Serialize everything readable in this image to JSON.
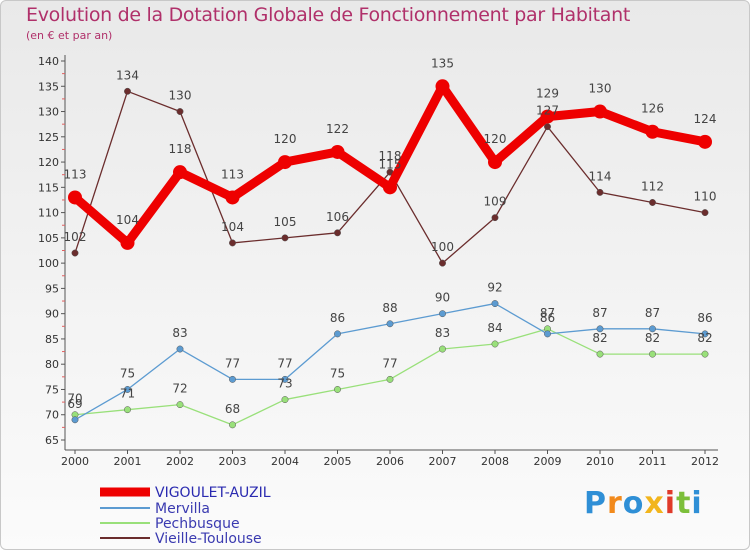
{
  "chart_data": {
    "type": "line",
    "title": "Evolution de la Dotation Globale de Fonctionnement par Habitant",
    "subtitle": "(en € et par an)",
    "xlabel": "",
    "ylabel": "",
    "ylim": [
      65,
      140
    ],
    "yticks": [
      65,
      70,
      75,
      80,
      85,
      90,
      95,
      100,
      105,
      110,
      115,
      120,
      125,
      130,
      135,
      140
    ],
    "grid": false,
    "legend_position": "bottom-left",
    "categories": [
      "2000",
      "2001",
      "2002",
      "2003",
      "2004",
      "2005",
      "2006",
      "2007",
      "2008",
      "2009",
      "2010",
      "2011",
      "2012"
    ],
    "series": [
      {
        "name": "VIGOULET-AUZIL",
        "color": "#ee0000",
        "values": [
          113,
          104,
          118,
          113,
          120,
          122,
          115,
          135,
          120,
          129,
          130,
          126,
          124
        ]
      },
      {
        "name": "Mervilla",
        "color": "#5c9bd1",
        "values": [
          69,
          75,
          83,
          77,
          77,
          86,
          88,
          90,
          92,
          86,
          87,
          87,
          86
        ]
      },
      {
        "name": "Pechbusque",
        "color": "#99e07a",
        "values": [
          70,
          71,
          72,
          68,
          73,
          75,
          77,
          83,
          84,
          87,
          82,
          82,
          82
        ]
      },
      {
        "name": "Vieille-Toulouse",
        "color": "#6b2d2d",
        "values": [
          102,
          134,
          130,
          104,
          105,
          106,
          118,
          100,
          109,
          127,
          114,
          112,
          110
        ]
      }
    ]
  },
  "logo": {
    "letters": [
      "P",
      "r",
      "o",
      "x",
      "i",
      "t",
      "i"
    ],
    "colors": [
      "#2f8fd6",
      "#f28a1c",
      "#2f8fd6",
      "#f2b51c",
      "#e03a2a",
      "#7cbf3a",
      "#2f8fd6"
    ]
  }
}
